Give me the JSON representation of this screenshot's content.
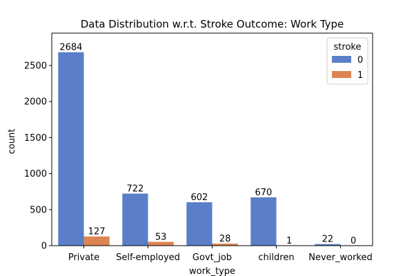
{
  "chart_data": {
    "type": "bar",
    "title": "Data Distribution w.r.t. Stroke Outcome: Work Type",
    "xlabel": "work_type",
    "ylabel": "count",
    "categories": [
      "Private",
      "Self-employed",
      "Govt_job",
      "children",
      "Never_worked"
    ],
    "series": [
      {
        "name": "0",
        "values": [
          2684,
          722,
          602,
          670,
          22
        ],
        "labels": [
          "2684",
          "722",
          "602",
          "670",
          "22"
        ],
        "color": "#5a7fc8"
      },
      {
        "name": "1",
        "values": [
          127,
          53,
          28,
          1,
          0
        ],
        "labels": [
          "127",
          "53",
          "28",
          "1",
          "0"
        ],
        "color": "#dd8452"
      }
    ],
    "yticks": [
      0,
      500,
      1000,
      1500,
      2000,
      2500
    ],
    "ylim": [
      0,
      2949
    ],
    "grid": false,
    "legend": {
      "title": "stroke",
      "placement": "top-right"
    }
  }
}
